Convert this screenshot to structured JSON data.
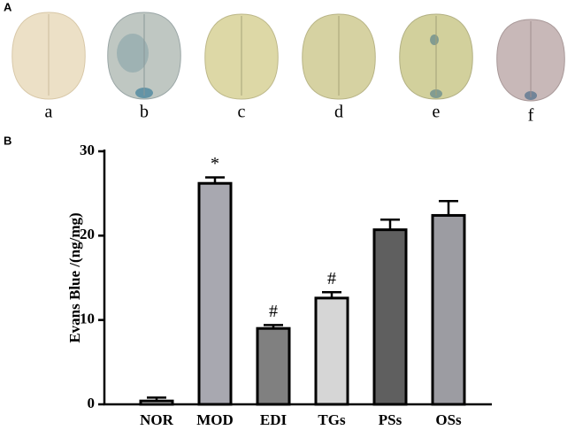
{
  "panels": [
    "A",
    "B"
  ],
  "image_labels": [
    "a",
    "b",
    "c",
    "d",
    "e",
    "f"
  ],
  "chart_data": {
    "type": "bar",
    "y_label": "Evans Blue /(ng/mg)",
    "categories": [
      "NOR",
      "MOD",
      "EDI",
      "TGs",
      "PSs",
      "OSs"
    ],
    "values": [
      0.4,
      26.2,
      9.0,
      12.6,
      20.7,
      22.4
    ],
    "errors": [
      0.4,
      0.7,
      0.4,
      0.7,
      1.2,
      1.7
    ],
    "significance": [
      null,
      "*",
      "#",
      "#",
      null,
      null
    ],
    "colors": [
      "#ffffff",
      "#a8a8b0",
      "#808080",
      "#d6d6d6",
      "#5f5f5f",
      "#9c9ca2"
    ],
    "ylim": [
      0,
      30
    ],
    "yticks": [
      0,
      10,
      20,
      30
    ]
  }
}
